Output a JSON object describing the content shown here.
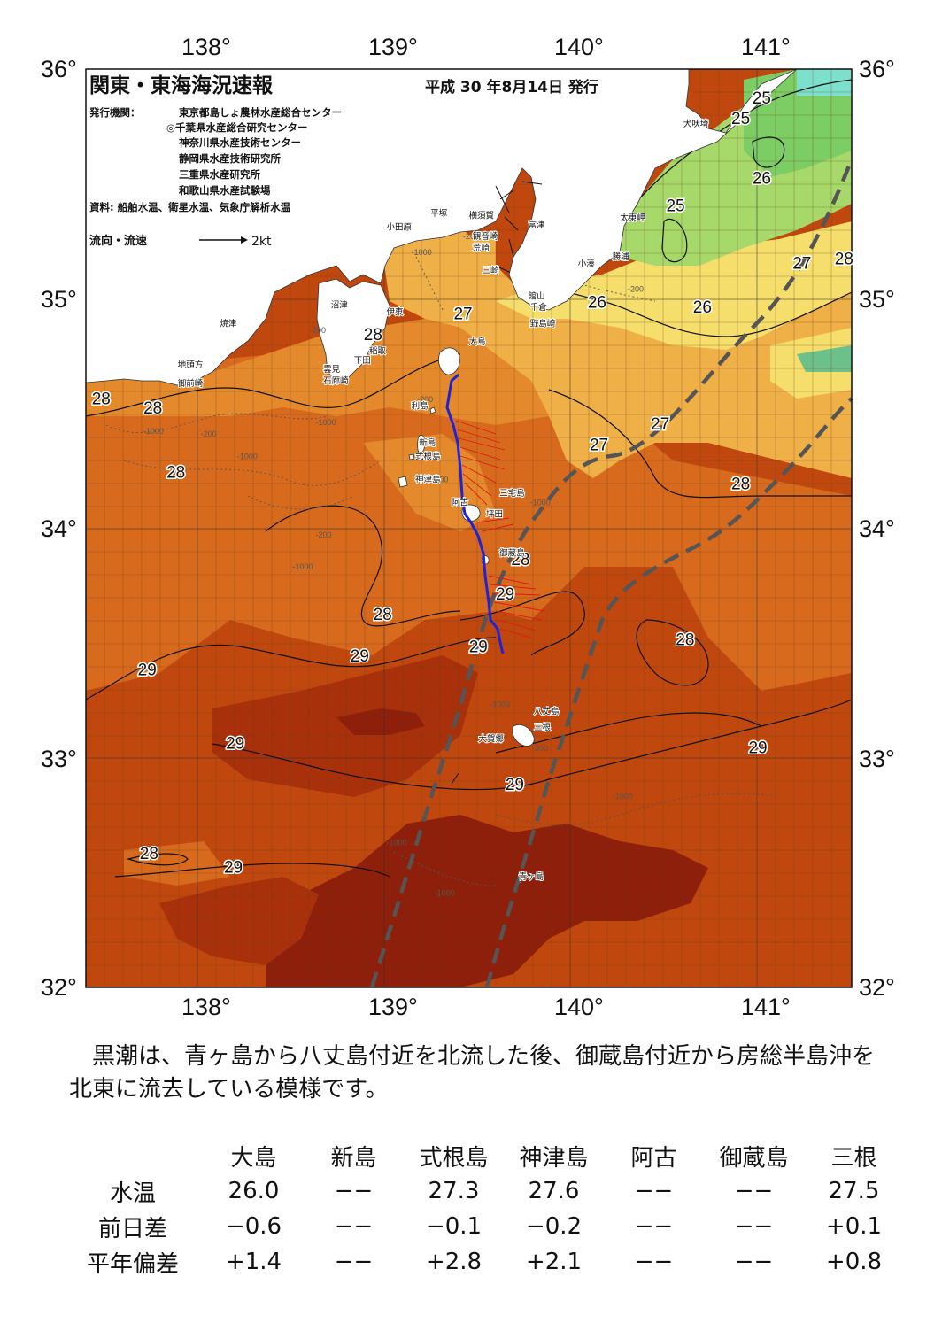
{
  "map": {
    "title": "関東・東海海況速報",
    "issued": "平成 30 年8月14日 発行",
    "issuer_label": "発行機関：",
    "issuers": [
      "東京都島しょ農林水産総合センター",
      "◎千葉県水産総合研究センター",
      "神奈川県水産技術センター",
      "静岡県水産技術研究所",
      "三重県水産研究所",
      "和歌山県水産試験場"
    ],
    "sources": "資料: 船舶水温、衛星水温、気象庁解析水温",
    "flow_legend_label": "流向・流速",
    "flow_legend_speed": "2kt",
    "lon_ticks": [
      "138°",
      "139°",
      "140°",
      "141°"
    ],
    "lat_ticks": [
      "36°",
      "35°",
      "34°",
      "33°",
      "32°"
    ],
    "lon_range": [
      137.5,
      141.5
    ],
    "lat_range": [
      32,
      36
    ],
    "kuroshio_path": "dashed-gray-lines",
    "colors": {
      "warm_29": "#c0480e",
      "warm_28": "#d86a1e",
      "temp_27": "#f0b048",
      "temp_26": "#f5de6c",
      "cool_25": "#90d260",
      "hot_core": "#8e1f0b",
      "land": "#ffffff",
      "kuroshio": "#555555",
      "ship_track": "#1e23d6",
      "flow_vectors": "#e01818"
    },
    "isotherm_labels": [
      {
        "text": "25",
        "lon": 141.03,
        "lat": 35.85
      },
      {
        "text": "25",
        "lon": 140.92,
        "lat": 35.76
      },
      {
        "text": "25",
        "lon": 140.58,
        "lat": 35.38
      },
      {
        "text": "26",
        "lon": 141.03,
        "lat": 35.5
      },
      {
        "text": "26",
        "lon": 140.17,
        "lat": 34.96
      },
      {
        "text": "26",
        "lon": 140.72,
        "lat": 34.94
      },
      {
        "text": "27",
        "lon": 139.47,
        "lat": 34.91
      },
      {
        "text": "27",
        "lon": 141.24,
        "lat": 35.13
      },
      {
        "text": "27",
        "lon": 140.5,
        "lat": 34.43
      },
      {
        "text": "27",
        "lon": 140.18,
        "lat": 34.34
      },
      {
        "text": "28",
        "lon": 141.46,
        "lat": 35.15
      },
      {
        "text": "28",
        "lon": 139.0,
        "lat": 34.82
      },
      {
        "text": "28",
        "lon": 137.58,
        "lat": 34.54
      },
      {
        "text": "28",
        "lon": 137.85,
        "lat": 34.5
      },
      {
        "text": "28",
        "lon": 137.97,
        "lat": 34.22
      },
      {
        "text": "28",
        "lon": 140.92,
        "lat": 34.17
      },
      {
        "text": "28",
        "lon": 139.77,
        "lat": 33.84
      },
      {
        "text": "28",
        "lon": 139.05,
        "lat": 33.6
      },
      {
        "text": "28",
        "lon": 140.63,
        "lat": 33.49
      },
      {
        "text": "28",
        "lon": 137.83,
        "lat": 32.56
      },
      {
        "text": "29",
        "lon": 139.69,
        "lat": 33.69
      },
      {
        "text": "29",
        "lon": 139.55,
        "lat": 33.46
      },
      {
        "text": "29",
        "lon": 138.93,
        "lat": 33.42
      },
      {
        "text": "29",
        "lon": 137.82,
        "lat": 33.36
      },
      {
        "text": "29",
        "lon": 138.28,
        "lat": 33.04
      },
      {
        "text": "29",
        "lon": 141.01,
        "lat": 33.02
      },
      {
        "text": "29",
        "lon": 139.74,
        "lat": 32.86
      },
      {
        "text": "29",
        "lon": 138.27,
        "lat": 32.5
      }
    ],
    "depth_labels": [
      {
        "text": "-200",
        "lon": 139.47,
        "lat": 35.26
      },
      {
        "text": "-1000",
        "lon": 139.2,
        "lat": 35.19
      },
      {
        "text": "-200",
        "lon": 140.33,
        "lat": 35.03
      },
      {
        "text": "-200",
        "lon": 138.67,
        "lat": 34.85
      },
      {
        "text": "-200",
        "lon": 138.1,
        "lat": 34.4
      },
      {
        "text": "-1000",
        "lon": 137.8,
        "lat": 34.41
      },
      {
        "text": "-1000",
        "lon": 138.7,
        "lat": 34.45
      },
      {
        "text": "-1000",
        "lon": 138.29,
        "lat": 34.3
      },
      {
        "text": "-200",
        "lon": 139.23,
        "lat": 34.55
      },
      {
        "text": "-200",
        "lon": 139.31,
        "lat": 34.2
      },
      {
        "text": "-200",
        "lon": 138.7,
        "lat": 33.96
      },
      {
        "text": "-1000",
        "lon": 138.58,
        "lat": 33.82
      },
      {
        "text": "-1000",
        "lon": 139.82,
        "lat": 34.1
      },
      {
        "text": "-1000",
        "lon": 139.61,
        "lat": 33.22
      },
      {
        "text": "-200",
        "lon": 139.83,
        "lat": 33.03
      },
      {
        "text": "-1000",
        "lon": 140.25,
        "lat": 32.82
      },
      {
        "text": "-1000",
        "lon": 139.07,
        "lat": 32.62
      },
      {
        "text": "-1000",
        "lon": 139.32,
        "lat": 32.4
      }
    ],
    "places": [
      {
        "text": "犬吠埼",
        "lon": 140.62,
        "lat": 35.75
      },
      {
        "text": "太東岬",
        "lon": 140.29,
        "lat": 35.34
      },
      {
        "text": "小湊",
        "lon": 140.07,
        "lat": 35.14
      },
      {
        "text": "勝浦",
        "lon": 140.25,
        "lat": 35.17
      },
      {
        "text": "富津",
        "lon": 139.81,
        "lat": 35.31
      },
      {
        "text": "横須賀",
        "lon": 139.5,
        "lat": 35.35
      },
      {
        "text": "平塚",
        "lon": 139.3,
        "lat": 35.36
      },
      {
        "text": "小田原",
        "lon": 139.07,
        "lat": 35.3
      },
      {
        "text": "観音崎",
        "lon": 139.52,
        "lat": 35.26
      },
      {
        "text": "荒崎",
        "lon": 139.52,
        "lat": 35.21
      },
      {
        "text": "三崎",
        "lon": 139.57,
        "lat": 35.11
      },
      {
        "text": "館山",
        "lon": 139.81,
        "lat": 35.0
      },
      {
        "text": "千倉",
        "lon": 139.82,
        "lat": 34.95
      },
      {
        "text": "野島崎",
        "lon": 139.82,
        "lat": 34.88
      },
      {
        "text": "沼津",
        "lon": 138.78,
        "lat": 34.96
      },
      {
        "text": "伊東",
        "lon": 139.07,
        "lat": 34.93
      },
      {
        "text": "焼津",
        "lon": 138.2,
        "lat": 34.88
      },
      {
        "text": "稲取",
        "lon": 138.98,
        "lat": 34.76
      },
      {
        "text": "下田",
        "lon": 138.9,
        "lat": 34.72
      },
      {
        "text": "雲見",
        "lon": 138.74,
        "lat": 34.68
      },
      {
        "text": "石廊崎",
        "lon": 138.74,
        "lat": 34.63
      },
      {
        "text": "地頭方",
        "lon": 137.98,
        "lat": 34.7
      },
      {
        "text": "御前崎",
        "lon": 137.98,
        "lat": 34.62
      },
      {
        "text": "大島",
        "lon": 139.5,
        "lat": 34.8
      },
      {
        "text": "利島",
        "lon": 139.2,
        "lat": 34.52
      },
      {
        "text": "新島",
        "lon": 139.24,
        "lat": 34.36
      },
      {
        "text": "式根島",
        "lon": 139.22,
        "lat": 34.3
      },
      {
        "text": "神津島",
        "lon": 139.22,
        "lat": 34.2
      },
      {
        "text": "三宅島",
        "lon": 139.66,
        "lat": 34.14
      },
      {
        "text": "阿古",
        "lon": 139.41,
        "lat": 34.1
      },
      {
        "text": "坪田",
        "lon": 139.59,
        "lat": 34.05
      },
      {
        "text": "御蔵島",
        "lon": 139.66,
        "lat": 33.88
      },
      {
        "text": "八丈島",
        "lon": 139.84,
        "lat": 33.19
      },
      {
        "text": "三根",
        "lon": 139.84,
        "lat": 33.12
      },
      {
        "text": "大賀郷",
        "lon": 139.55,
        "lat": 33.07
      },
      {
        "text": "青ヶ島",
        "lon": 139.76,
        "lat": 32.47
      }
    ]
  },
  "summary": "黒潮は、青ヶ島から八丈島付近を北流した後、御蔵島付近から房総半島沖を北東に流去している模様です。",
  "table": {
    "columns": [
      "大島",
      "新島",
      "式根島",
      "神津島",
      "阿古",
      "御蔵島",
      "三根"
    ],
    "rows": [
      {
        "label": "水温",
        "values": [
          "26.0",
          "−−",
          "27.3",
          "27.6",
          "−−",
          "−−",
          "27.5"
        ]
      },
      {
        "label": "前日差",
        "values": [
          "−0.6",
          "−−",
          "−0.1",
          "−0.2",
          "−−",
          "−−",
          "+0.1"
        ]
      },
      {
        "label": "平年偏差",
        "values": [
          "+1.4",
          "−−",
          "+2.8",
          "+2.1",
          "−−",
          "−−",
          "+0.8"
        ]
      }
    ]
  }
}
